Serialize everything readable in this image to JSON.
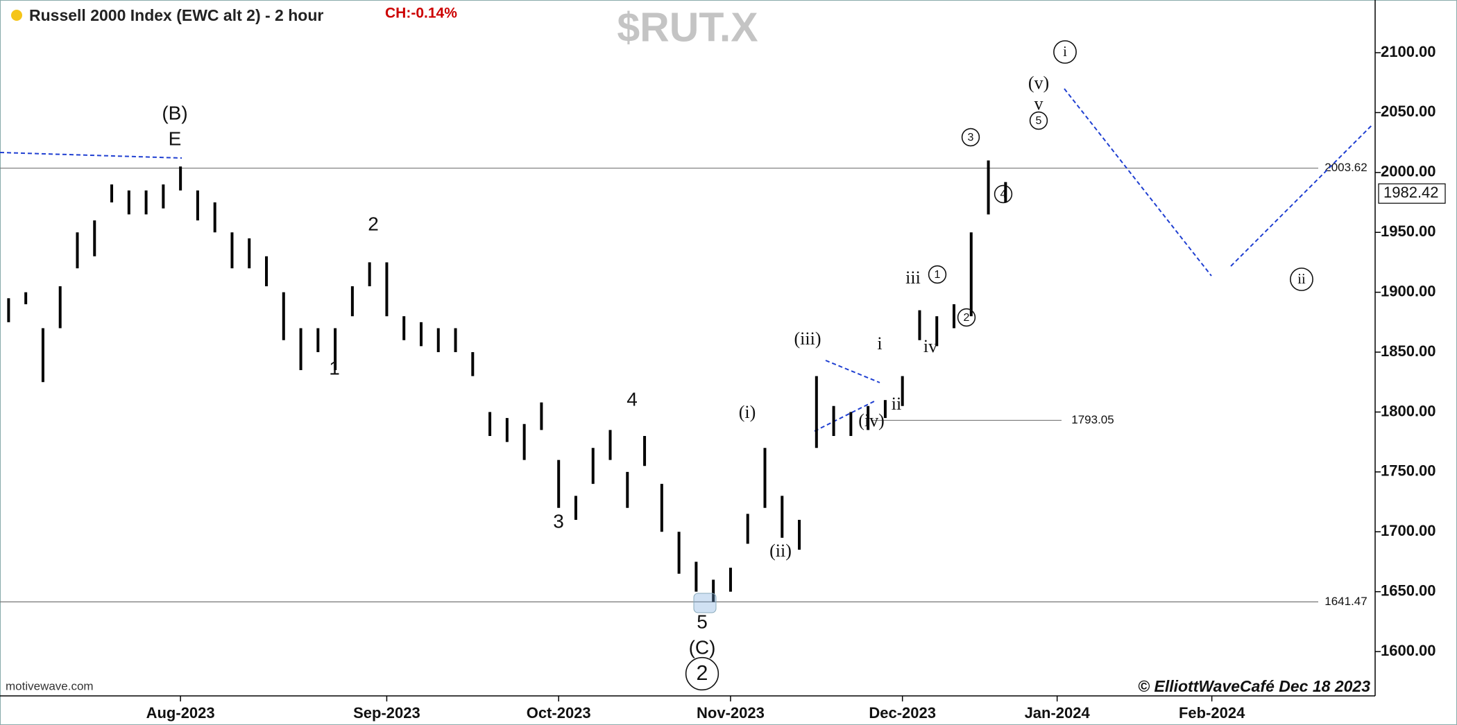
{
  "chart_data": {
    "type": "ohlc",
    "title": "Russell 2000 Index (EWC alt 2) - 2 hour",
    "change_label": "CH:-0.14%",
    "watermark": "$RUT.X",
    "source": "motivewave.com",
    "copyright": "© ElliottWaveCafé Dec 18 2023",
    "categories": [
      null,
      null,
      null,
      null,
      null,
      null,
      null,
      null,
      null,
      null,
      "Aug-2023",
      null,
      null,
      null,
      null,
      null,
      null,
      null,
      null,
      null,
      null,
      null,
      "Sep-2023",
      null,
      null,
      null,
      null,
      null,
      null,
      null,
      null,
      null,
      "Oct-2023",
      null,
      null,
      null,
      null,
      null,
      null,
      null,
      null,
      null,
      "Nov-2023",
      null,
      null,
      null,
      null,
      null,
      null,
      null,
      null,
      null,
      "Dec-2023",
      null,
      null,
      null,
      null,
      null,
      null,
      null,
      null,
      "Jan-2024",
      null,
      null,
      null,
      null,
      null,
      null,
      null,
      null,
      "Feb-2024",
      null,
      null,
      null,
      null,
      null,
      null,
      null,
      null,
      null
    ],
    "high": [
      1895,
      1900,
      1870,
      1905,
      1950,
      1960,
      1990,
      1985,
      1985,
      1990,
      2005,
      1985,
      1975,
      1950,
      1945,
      1930,
      1900,
      1870,
      1870,
      1870,
      1905,
      1925,
      1925,
      1880,
      1875,
      1870,
      1870,
      1850,
      1800,
      1795,
      1790,
      1808,
      1760,
      1730,
      1770,
      1785,
      1750,
      1780,
      1740,
      1700,
      1675,
      1660,
      1670,
      1715,
      1770,
      1730,
      1710,
      1830,
      1805,
      1800,
      1805,
      1810,
      1830,
      1885,
      1880,
      1890,
      1950,
      2010,
      1992,
      null,
      null,
      null,
      null,
      null,
      null,
      null,
      null,
      null,
      null,
      null,
      null,
      null,
      null,
      null,
      null,
      null,
      null,
      null,
      null,
      null
    ],
    "low": [
      1875,
      1890,
      1825,
      1870,
      1920,
      1930,
      1975,
      1965,
      1965,
      1970,
      1985,
      1960,
      1950,
      1920,
      1920,
      1905,
      1860,
      1835,
      1850,
      1835,
      1880,
      1905,
      1880,
      1860,
      1855,
      1850,
      1850,
      1830,
      1780,
      1775,
      1760,
      1785,
      1720,
      1710,
      1740,
      1760,
      1720,
      1755,
      1700,
      1665,
      1650,
      1641.47,
      1650,
      1690,
      1720,
      1695,
      1685,
      1770,
      1780,
      1780,
      1785,
      1795,
      1805,
      1860,
      1855,
      1870,
      1880,
      1965,
      1975,
      null,
      null,
      null,
      null,
      null,
      null,
      null,
      null,
      null,
      null,
      null,
      null,
      null,
      null,
      null,
      null,
      null,
      null,
      null,
      null,
      null
    ],
    "color": "#000000",
    "last_price": 1982.42,
    "levels": [
      2003.62,
      1793.05,
      1641.47
    ],
    "ylim": [
      1563,
      2144
    ],
    "yticks": [
      {
        "value": 1600,
        "label": "1600.00"
      },
      {
        "value": 1650,
        "label": "1650.00"
      },
      {
        "value": 1700,
        "label": "1700.00"
      },
      {
        "value": 1750,
        "label": "1750.00"
      },
      {
        "value": 1800,
        "label": "1800.00"
      },
      {
        "value": 1850,
        "label": "1850.00"
      },
      {
        "value": 1900,
        "label": "1900.00"
      },
      {
        "value": 1950,
        "label": "1950.00"
      },
      {
        "value": 2000,
        "label": "2000.00"
      },
      {
        "value": 2050,
        "label": "2050.00"
      },
      {
        "value": 2100,
        "label": "2100.00"
      }
    ],
    "annotations": [
      {
        "text": "(B)"
      },
      {
        "text": "E"
      },
      {
        "text": "2"
      },
      {
        "text": "1"
      },
      {
        "text": "3"
      },
      {
        "text": "4"
      },
      {
        "text": "5"
      },
      {
        "text": "(C)"
      },
      {
        "text": "2",
        "circled": true
      },
      {
        "text": "(i)"
      },
      {
        "text": "(ii)"
      },
      {
        "text": "(iii)"
      },
      {
        "text": "(iv)"
      },
      {
        "text": "i"
      },
      {
        "text": "ii"
      },
      {
        "text": "iii"
      },
      {
        "text": "iv"
      },
      {
        "text": "1",
        "circled": true
      },
      {
        "text": "2",
        "circled": true
      },
      {
        "text": "3",
        "circled": true
      },
      {
        "text": "4",
        "circled": true
      },
      {
        "text": "5",
        "circled": true
      },
      {
        "text": "v"
      },
      {
        "text": "(v)"
      },
      {
        "text": "i",
        "circled": true
      },
      {
        "text": "ii",
        "circled": true
      }
    ]
  }
}
